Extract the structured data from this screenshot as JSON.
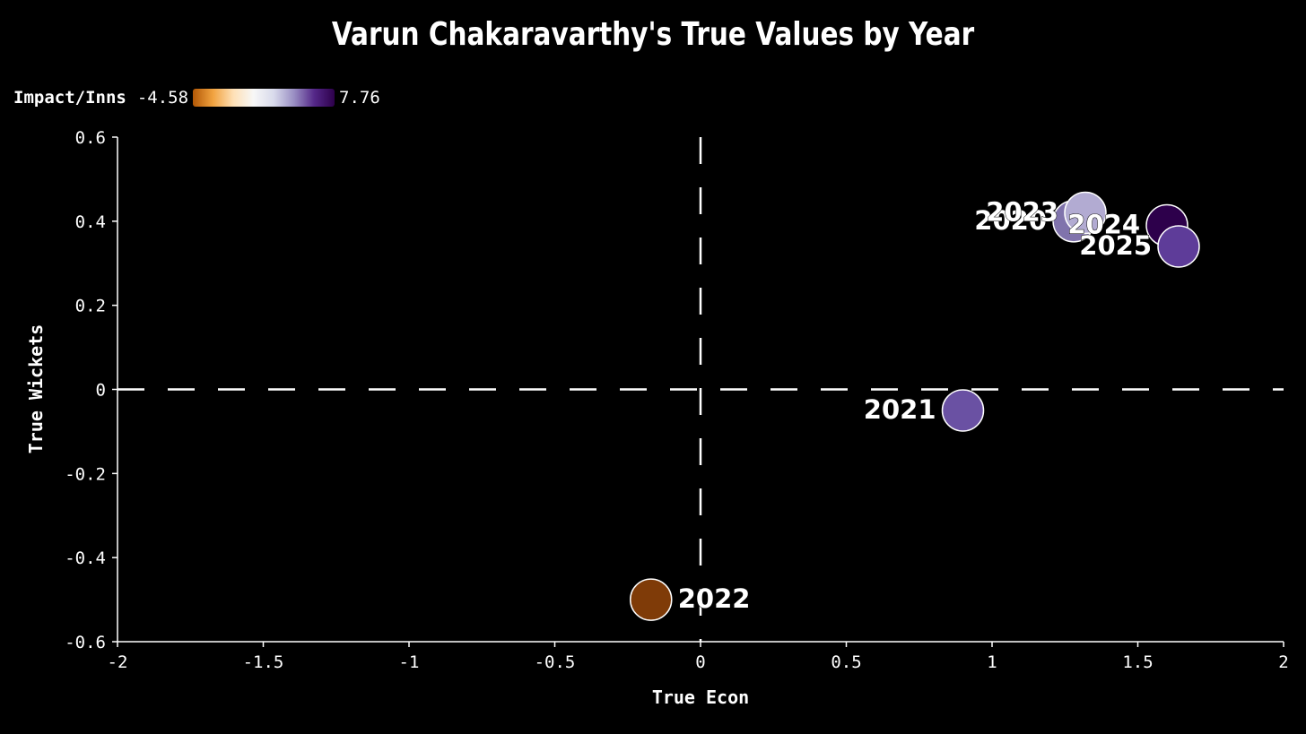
{
  "title": "Varun Chakaravarthy's True Values by Year",
  "legend": {
    "label": "Impact/Inns",
    "min_label": "-4.58",
    "max_label": "7.76",
    "gradient_colors": [
      "#b35806",
      "#f1a340",
      "#fee0b6",
      "#f7f7f7",
      "#d8daeb",
      "#998ec3",
      "#542788",
      "#2d004b"
    ]
  },
  "chart_data": {
    "type": "scatter",
    "title": "Varun Chakaravarthy's True Values by Year",
    "xlabel": "True Econ",
    "ylabel": "True Wickets",
    "xlim": [
      -2,
      2
    ],
    "ylim": [
      -0.6,
      0.6
    ],
    "x_ticks": [
      -2,
      -1.5,
      -1,
      -0.5,
      0,
      0.5,
      1,
      1.5,
      2
    ],
    "x_tick_labels": [
      "-2",
      "-1.5",
      "-1",
      "-0.5",
      "0",
      "0.5",
      "1",
      "1.5",
      "2"
    ],
    "y_ticks": [
      0.6,
      0.4,
      0.2,
      0,
      -0.2,
      -0.4,
      -0.6
    ],
    "y_tick_labels": [
      "0.6",
      "0.4",
      "0.2",
      "0",
      "-0.2",
      "-0.4",
      "-0.6"
    ],
    "reference_lines": {
      "x": 0,
      "y": 0,
      "style": "dashed"
    },
    "points": [
      {
        "label": "2021",
        "x": 0.9,
        "y": -0.05,
        "color": "#6a51a3",
        "label_side": "left"
      },
      {
        "label": "2022",
        "x": -0.17,
        "y": -0.5,
        "color": "#7f3b08",
        "label_side": "right"
      },
      {
        "label": "2020",
        "x": 1.28,
        "y": 0.4,
        "color": "#8073ac",
        "label_side": "left"
      },
      {
        "label": "2023",
        "x": 1.32,
        "y": 0.42,
        "color": "#b2abd2",
        "label_side": "left"
      },
      {
        "label": "2024",
        "x": 1.6,
        "y": 0.39,
        "color": "#2d004b",
        "label_side": "left"
      },
      {
        "label": "2025",
        "x": 1.64,
        "y": 0.34,
        "color": "#5e3c99",
        "label_side": "left"
      }
    ]
  }
}
